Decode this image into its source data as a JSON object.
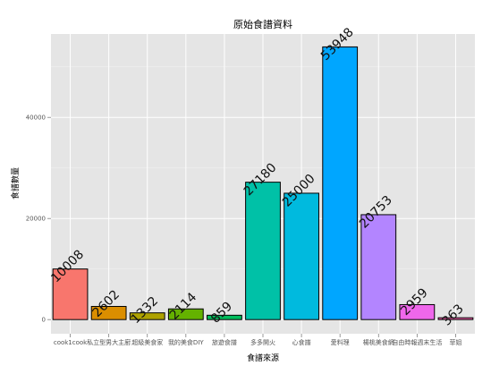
{
  "chart_data": {
    "type": "bar",
    "title": "原始食譜資料",
    "xlabel": "食譜來源",
    "ylabel": "食譜數量",
    "categories": [
      "cook1cook",
      "私立型男大主廚",
      "超級美食家",
      "我的美食DIY",
      "旅遊食譜",
      "多多開火",
      "心食譜",
      "愛料理",
      "楊桃美食網",
      "自由時報週末生活",
      "菲姐"
    ],
    "values": [
      10008,
      2602,
      1332,
      2114,
      859,
      27180,
      25000,
      53948,
      20753,
      2959,
      363
    ],
    "colors": [
      "#F8766D",
      "#DB8E00",
      "#AEA200",
      "#64B200",
      "#00BD5C",
      "#00C1A7",
      "#00BADE",
      "#00A6FF",
      "#B385FF",
      "#EF67EB",
      "#FF63B6"
    ],
    "yticks": [
      0,
      20000,
      40000
    ],
    "ylim": [
      -2800,
      56500
    ],
    "grid": true,
    "legend": "none"
  }
}
